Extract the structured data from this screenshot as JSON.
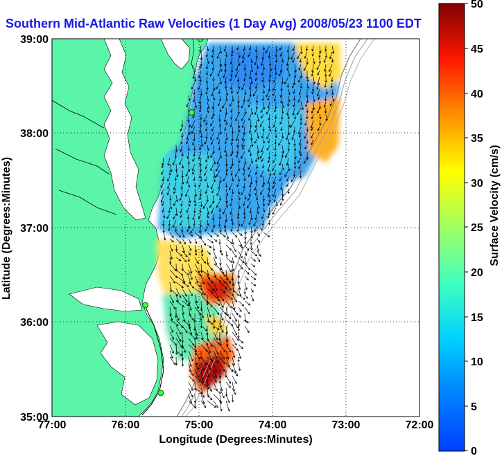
{
  "title": "Southern Mid-Atlantic Raw Velocities (1 Day Avg) 2008/05/23 1100 EDT",
  "title_color": "#1a1ae6",
  "x_axis": {
    "label": "Longitude (Degrees:Minutes)",
    "ticks": [
      "77:00",
      "76:00",
      "75:00",
      "74:00",
      "73:00",
      "72:00"
    ]
  },
  "y_axis": {
    "label": "Latitude (Degrees:Minutes)",
    "ticks": [
      "39:00",
      "38:00",
      "37:00",
      "36:00",
      "35:00"
    ]
  },
  "colorbar": {
    "label": "Surface Velocity (cm/s)",
    "ticks": [
      "50",
      "45",
      "40",
      "35",
      "30",
      "25",
      "20",
      "15",
      "10",
      "5",
      "0"
    ],
    "min": 0,
    "max": 50,
    "colormap": "jet"
  },
  "land_color": "#5af5a8",
  "grid": "dotted",
  "stations": [
    {
      "lon": -74.98,
      "lat": 39.0
    },
    {
      "lon": -75.1,
      "lat": 38.22
    },
    {
      "lon": -75.73,
      "lat": 36.18
    },
    {
      "lon": -75.52,
      "lat": 35.25
    }
  ]
}
